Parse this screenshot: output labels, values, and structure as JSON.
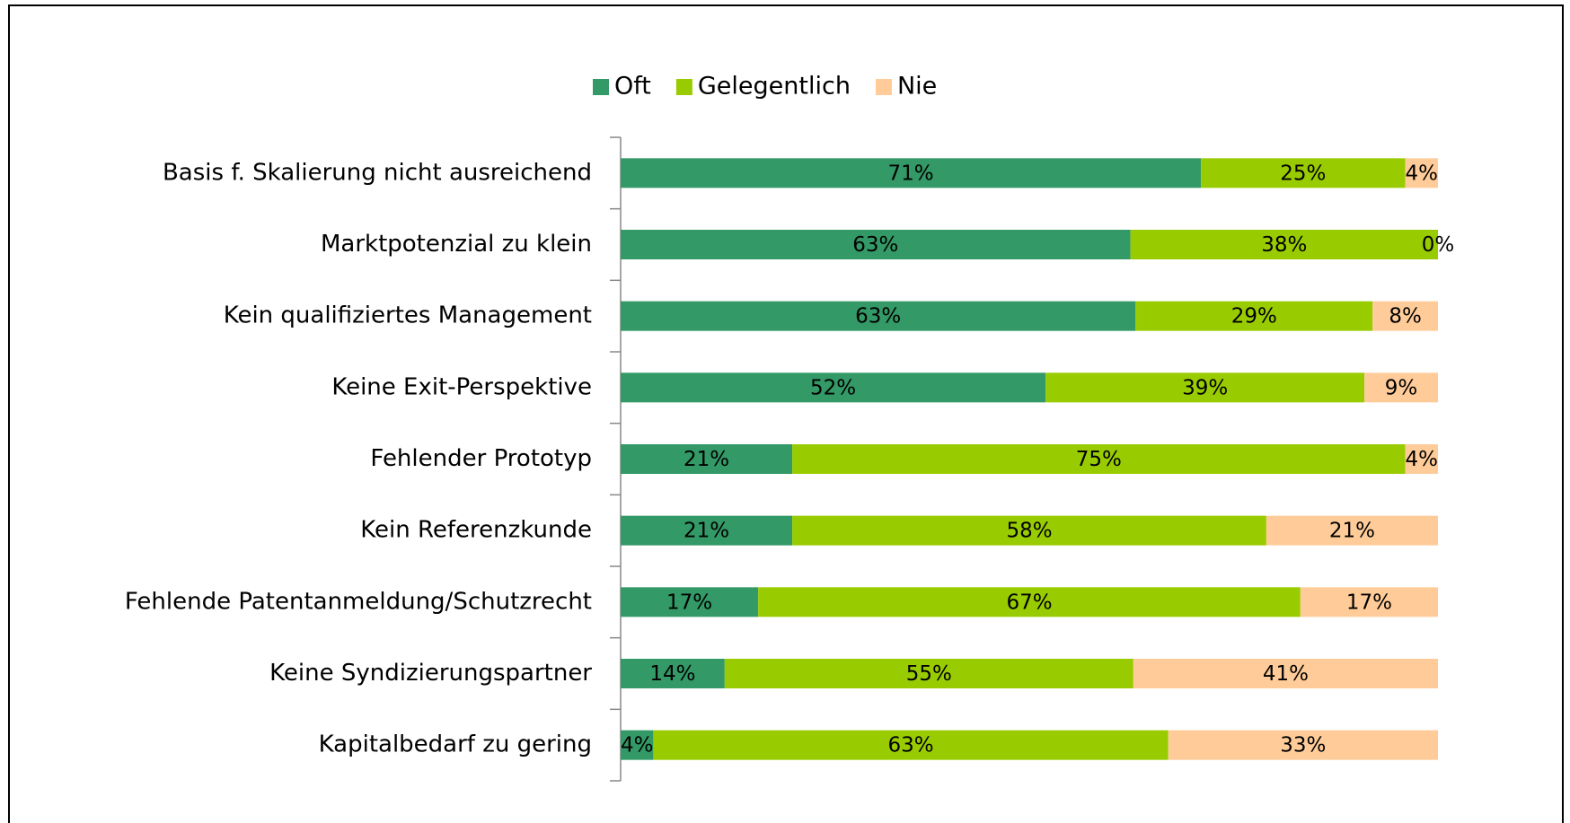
{
  "chart_data": {
    "type": "bar",
    "orientation": "horizontal",
    "stacking": "percent",
    "categories": [
      "Basis f. Skalierung nicht ausreichend",
      "Marktpotenzial zu klein",
      "Kein qualifiziertes Management",
      "Keine Exit-Perspektive",
      "Fehlender Prototyp",
      "Kein Referenzkunde",
      "Fehlende Patentanmeldung/Schutzrecht",
      "Keine Syndizierungspartner",
      "Kapitalbedarf zu gering"
    ],
    "series": [
      {
        "name": "Oft",
        "color": "#339966",
        "values": [
          71,
          63,
          63,
          52,
          21,
          21,
          17,
          14,
          4
        ],
        "value_labels": [
          "71%",
          "63%",
          "63%",
          "52%",
          "21%",
          "21%",
          "17%",
          "14%",
          "4%"
        ]
      },
      {
        "name": "Gelegentlich",
        "color": "#99cc00",
        "values": [
          25,
          38,
          29,
          39,
          75,
          58,
          67,
          55,
          63
        ],
        "value_labels": [
          "25%",
          "38%",
          "29%",
          "39%",
          "75%",
          "58%",
          "67%",
          "55%",
          "63%"
        ]
      },
      {
        "name": "Nie",
        "color": "#ffcc99",
        "values": [
          4,
          0,
          8,
          9,
          4,
          21,
          17,
          41,
          33
        ],
        "value_labels": [
          "4%",
          "0%",
          "8%",
          "9%",
          "4%",
          "21%",
          "17%",
          "41%",
          "33%"
        ]
      }
    ],
    "legend": "top"
  }
}
